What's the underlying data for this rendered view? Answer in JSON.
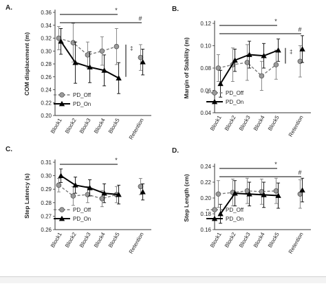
{
  "legend": {
    "off_label": "PD_Off",
    "on_label": "PD_On"
  },
  "colors": {
    "off": "#8a8a8a",
    "off_line": "#7a7a7a",
    "on": "#000000",
    "axis": "#333333",
    "text": "#222222"
  },
  "chart_data": [
    {
      "panel": "A.",
      "type": "line",
      "ylabel": "COM displacement (m)",
      "categories": [
        "Block1",
        "Block2",
        "Block3",
        "Block4",
        "Block5",
        "Retention"
      ],
      "ylim": [
        0.2,
        0.36
      ],
      "yticks": [
        0.2,
        0.22,
        0.24,
        0.26,
        0.28,
        0.3,
        0.32,
        0.34,
        0.36
      ],
      "tick_decimals": 2,
      "series": [
        {
          "name": "PD_Off",
          "values": [
            0.32,
            0.313,
            0.294,
            0.3,
            0.307,
            0.29
          ],
          "errors": [
            0.018,
            0.03,
            0.02,
            0.022,
            0.028,
            0.02
          ]
        },
        {
          "name": "PD_On",
          "values": [
            0.315,
            0.282,
            0.275,
            0.27,
            0.258,
            0.283
          ],
          "errors": [
            0.02,
            0.032,
            0.024,
            0.024,
            0.024,
            0.02
          ]
        }
      ],
      "brackets": [
        {
          "from": "Block1",
          "to": "Block5",
          "label": "*"
        },
        {
          "from": "Block1",
          "to": "Retention",
          "label": "#"
        }
      ],
      "dagger": {
        "label": "‡",
        "range": [
          0.26,
          0.31
        ]
      }
    },
    {
      "panel": "B.",
      "type": "line",
      "ylabel": "Margin of Stability (m)",
      "categories": [
        "Block1",
        "Block2",
        "Block3",
        "Block4",
        "Block5",
        "Retention"
      ],
      "ylim": [
        0.04,
        0.12
      ],
      "yticks": [
        0.04,
        0.06,
        0.08,
        0.1,
        0.12
      ],
      "tick_decimals": 2,
      "series": [
        {
          "name": "PD_Off",
          "values": [
            0.08,
            0.083,
            0.085,
            0.073,
            0.083,
            0.086
          ],
          "errors": [
            0.012,
            0.015,
            0.016,
            0.013,
            0.013,
            0.014
          ]
        },
        {
          "name": "PD_On",
          "values": [
            0.066,
            0.087,
            0.092,
            0.091,
            0.096,
            0.097
          ],
          "errors": [
            0.012,
            0.01,
            0.012,
            0.011,
            0.01,
            0.012
          ]
        }
      ],
      "brackets": [
        {
          "from": "Block1",
          "to": "Block5",
          "label": "*"
        },
        {
          "from": "Block1",
          "to": "Retention",
          "label": "#"
        }
      ],
      "dagger": {
        "label": "‡",
        "range": [
          0.084,
          0.098
        ]
      }
    },
    {
      "panel": "C.",
      "type": "line",
      "ylabel": "Step Latency (s)",
      "categories": [
        "Block1",
        "Block2",
        "Block3",
        "Block4",
        "Block5",
        "Retention"
      ],
      "ylim": [
        0.26,
        0.31
      ],
      "yticks": [
        0.26,
        0.27,
        0.28,
        0.29,
        0.3,
        0.31
      ],
      "tick_decimals": 2,
      "series": [
        {
          "name": "PD_Off",
          "values": [
            0.293,
            0.285,
            0.286,
            0.283,
            0.286,
            0.292
          ],
          "errors": [
            0.005,
            0.007,
            0.006,
            0.006,
            0.006,
            0.006
          ]
        },
        {
          "name": "PD_On",
          "values": [
            0.3,
            0.293,
            0.291,
            0.287,
            0.286,
            0.288
          ],
          "errors": [
            0.005,
            0.006,
            0.006,
            0.007,
            0.007,
            0.006
          ]
        }
      ],
      "brackets": [
        {
          "from": "Block1",
          "to": "Block5",
          "label": "*"
        }
      ]
    },
    {
      "panel": "D.",
      "type": "line",
      "ylabel": "Step Length (cm)",
      "categories": [
        "Block1",
        "Block2",
        "Block3",
        "Block4",
        "Block5",
        "Retention"
      ],
      "ylim": [
        0.16,
        0.24
      ],
      "yticks": [
        0.16,
        0.18,
        0.2,
        0.22,
        0.24
      ],
      "tick_decimals": 2,
      "series": [
        {
          "name": "PD_Off",
          "values": [
            0.205,
            0.207,
            0.209,
            0.208,
            0.209,
            0.205
          ],
          "errors": [
            0.017,
            0.017,
            0.016,
            0.016,
            0.016,
            0.018
          ]
        },
        {
          "name": "PD_On",
          "values": [
            0.18,
            0.206,
            0.205,
            0.204,
            0.203,
            0.21
          ],
          "errors": [
            0.012,
            0.016,
            0.015,
            0.016,
            0.016,
            0.015
          ]
        }
      ],
      "brackets": [
        {
          "from": "Block1",
          "to": "Block5",
          "label": "*"
        },
        {
          "from": "Block1",
          "to": "Retention",
          "label": "#"
        }
      ]
    }
  ]
}
